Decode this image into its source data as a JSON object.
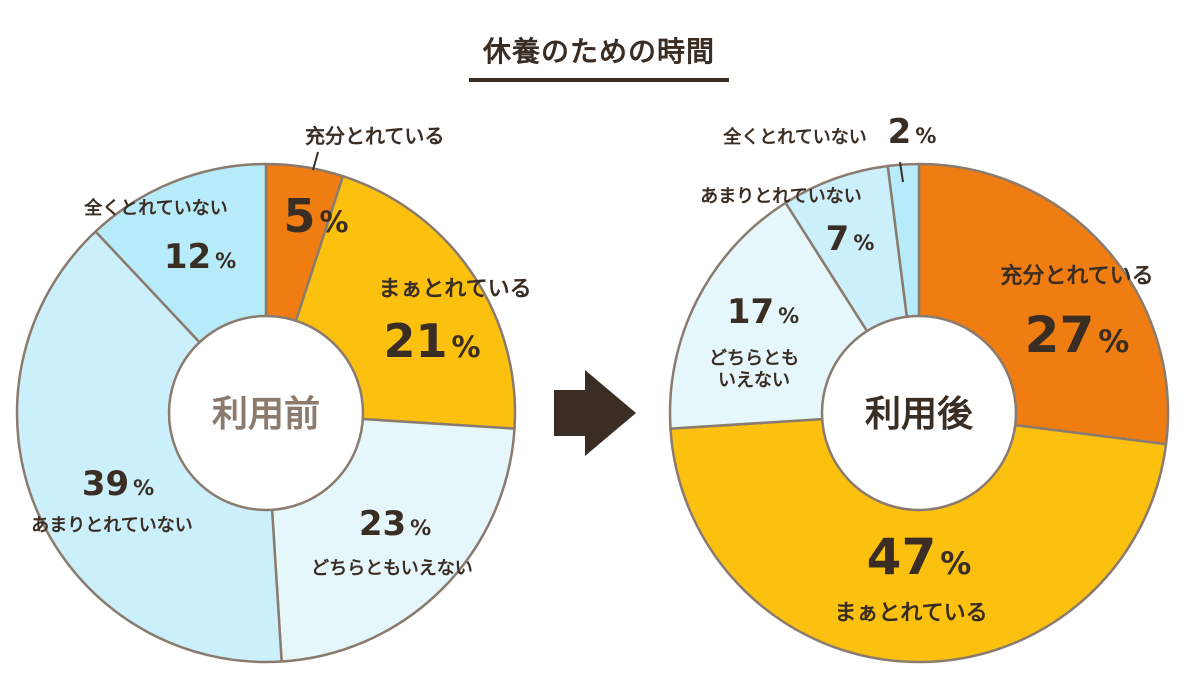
{
  "title": "休養のための時間",
  "chart_data": [
    {
      "type": "pie",
      "center_label": "利用前",
      "slices": [
        {
          "name": "充分とれている",
          "value": 5,
          "color": "#f07d12"
        },
        {
          "name": "まぁとれている",
          "value": 21,
          "color": "#fcc10f"
        },
        {
          "name": "どちらともいえない",
          "value": 23,
          "color": "#e6f7fc"
        },
        {
          "name": "あまりとれていない",
          "value": 39,
          "color": "#ccf0fb"
        },
        {
          "name": "全くとれていない",
          "value": 12,
          "color": "#b8ebfa"
        }
      ],
      "value_labels": [
        "5%",
        "21%",
        "23%",
        "39%",
        "12%"
      ]
    },
    {
      "type": "pie",
      "center_label": "利用後",
      "slices": [
        {
          "name": "充分とれている",
          "value": 27,
          "color": "#f07d12"
        },
        {
          "name": "まぁとれている",
          "value": 47,
          "color": "#fcc10f"
        },
        {
          "name": "どちらともいえない",
          "value": 17,
          "color": "#e6f7fc"
        },
        {
          "name": "あまりとれていない",
          "value": 7,
          "color": "#ccf0fb"
        },
        {
          "name": "全くとれていない",
          "value": 2,
          "color": "#b8ebfa"
        }
      ],
      "value_labels": [
        "27%",
        "47%",
        "17%",
        "7%",
        "2%"
      ],
      "wrapped_labels": {
        "どちらともいえない": [
          "どちらとも",
          "いえない"
        ]
      }
    }
  ],
  "arrow_icon": "right-arrow-icon",
  "colors": {
    "outline": "#8a7b6e",
    "text": "#3a2e24",
    "arrow": "#3a2e24"
  }
}
